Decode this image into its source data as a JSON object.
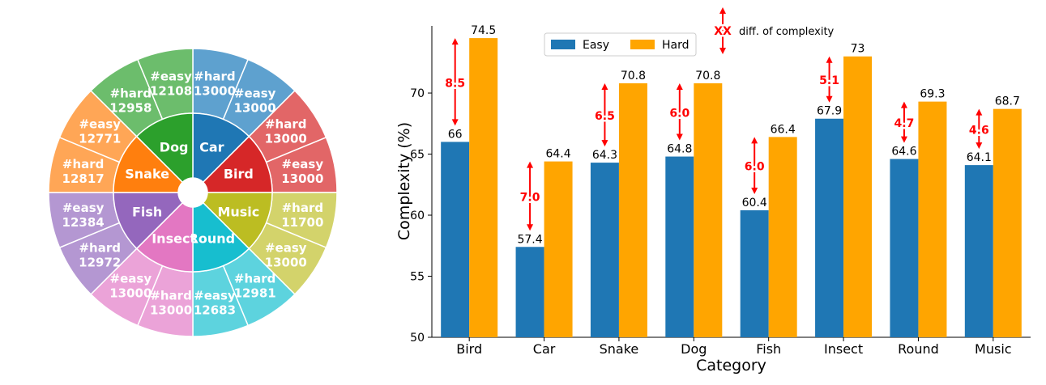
{
  "chart_data": [
    {
      "type": "pie",
      "title": "",
      "inner_ring": [
        {
          "label": "Car",
          "color": "#1f77b4"
        },
        {
          "label": "Bird",
          "color": "#d62728"
        },
        {
          "label": "Music",
          "color": "#bcbd22"
        },
        {
          "label": "Round",
          "color": "#17becf"
        },
        {
          "label": "Insect",
          "color": "#e377c2"
        },
        {
          "label": "Fish",
          "color": "#9467bd"
        },
        {
          "label": "Snake",
          "color": "#ff7f0e"
        },
        {
          "label": "Dog",
          "color": "#2ca02c"
        }
      ],
      "outer_ring": [
        {
          "name": "#hard",
          "value": "13000",
          "color": "#5ea1cf"
        },
        {
          "name": "#easy",
          "value": "13000",
          "color": "#5ea1cf"
        },
        {
          "name": "#hard",
          "value": "13000",
          "color": "#e26667"
        },
        {
          "name": "#easy",
          "value": "13000",
          "color": "#e26667"
        },
        {
          "name": "#hard",
          "value": "11700",
          "color": "#d3d36b"
        },
        {
          "name": "#easy",
          "value": "13000",
          "color": "#d3d36b"
        },
        {
          "name": "#hard",
          "value": "12981",
          "color": "#5dd3de"
        },
        {
          "name": "#easy",
          "value": "12683",
          "color": "#5dd3de"
        },
        {
          "name": "#hard",
          "value": "13000",
          "color": "#eba3d8"
        },
        {
          "name": "#easy",
          "value": "13000",
          "color": "#eba3d8"
        },
        {
          "name": "#hard",
          "value": "12972",
          "color": "#b497d2"
        },
        {
          "name": "#easy",
          "value": "12384",
          "color": "#b497d2"
        },
        {
          "name": "#hard",
          "value": "12817",
          "color": "#ffa656"
        },
        {
          "name": "#easy",
          "value": "12771",
          "color": "#ffa656"
        },
        {
          "name": "#hard",
          "value": "12958",
          "color": "#6cbd6c"
        },
        {
          "name": "#easy",
          "value": "12108",
          "color": "#6cbd6c"
        }
      ]
    },
    {
      "type": "bar",
      "title": "",
      "xlabel": "Category",
      "ylabel": "Complexity (%)",
      "ylim": [
        50,
        75.5
      ],
      "yticks": [
        50,
        55,
        60,
        65,
        70
      ],
      "categories": [
        "Bird",
        "Car",
        "Snake",
        "Dog",
        "Fish",
        "Insect",
        "Round",
        "Music"
      ],
      "series": [
        {
          "name": "Easy",
          "color": "#1f77b4",
          "values": [
            66,
            57.4,
            64.3,
            64.8,
            60.4,
            67.9,
            64.6,
            64.1
          ],
          "labels": [
            "66",
            "57.4",
            "64.3",
            "64.8",
            "60.4",
            "67.9",
            "64.6",
            "64.1"
          ]
        },
        {
          "name": "Hard",
          "color": "#ffa500",
          "values": [
            74.5,
            64.4,
            70.8,
            70.8,
            66.4,
            73,
            69.3,
            68.7
          ],
          "labels": [
            "74.5",
            "64.4",
            "70.8",
            "70.8",
            "66.4",
            "73",
            "69.3",
            "68.7"
          ]
        }
      ],
      "differences": [
        "8.5",
        "7.0",
        "6.5",
        "6.0",
        "6.0",
        "5.1",
        "4.7",
        "4.6"
      ],
      "annotation": {
        "symbol": "XX",
        "text": "diff. of complexity",
        "color": "#ff0000"
      },
      "legend_position": "top-center",
      "grid": false
    }
  ]
}
